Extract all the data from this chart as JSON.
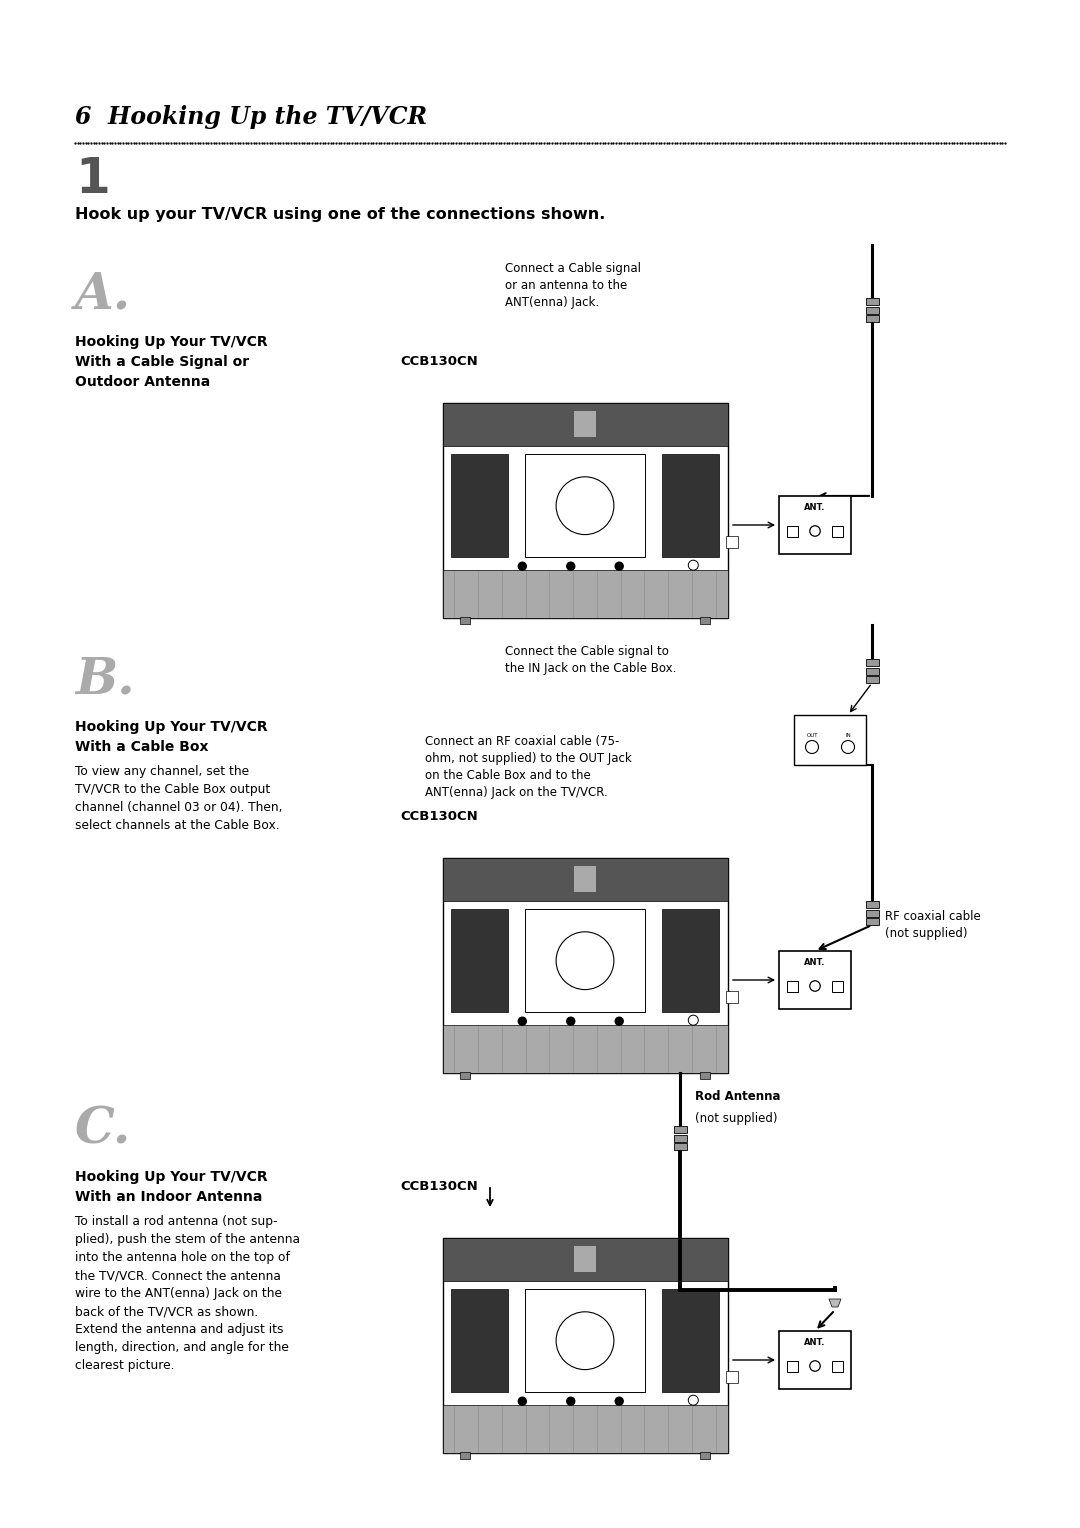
{
  "bg_color": "#ffffff",
  "page_title": "6  Hooking Up the TV/VCR",
  "step_number": "1",
  "step_text": "Hook up your TV/VCR using one of the connections shown.",
  "section_A_letter": "A.",
  "section_A_title": "Hooking Up Your TV/VCR\nWith a Cable Signal or\nOutdoor Antenna",
  "section_A_note1": "Connect a Cable signal\nor an antenna to the\nANT(enna) Jack.",
  "section_A_model": "CCB130CN",
  "section_B_letter": "B.",
  "section_B_title": "Hooking Up Your TV/VCR\nWith a Cable Box",
  "section_B_body": "To view any channel, set the\nTV/VCR to the Cable Box output\nchannel (channel 03 or 04). Then,\nselect channels at the Cable Box.",
  "section_B_note1": "Connect the Cable signal to\nthe IN Jack on the Cable Box.",
  "section_B_note2": "Connect an RF coaxial cable (75-\nohm, not supplied) to the OUT Jack\non the Cable Box and to the\nANT(enna) Jack on the TV/VCR.",
  "section_B_model": "CCB130CN",
  "section_B_cable_label": "RF coaxial cable\n(not supplied)",
  "section_C_letter": "C.",
  "section_C_title": "Hooking Up Your TV/VCR\nWith an Indoor Antenna",
  "section_C_body": "To install a rod antenna (not sup-\nplied), push the stem of the antenna\ninto the antenna hole on the top of\nthe TV/VCR. Connect the antenna\nwire to the ANT(enna) Jack on the\nback of the TV/VCR as shown.\nExtend the antenna and adjust its\nlength, direction, and angle for the\nclearest picture.",
  "section_C_model": "CCB130CN",
  "section_C_rod_label1": "Rod Antenna",
  "section_C_rod_label2": "(not supplied)"
}
